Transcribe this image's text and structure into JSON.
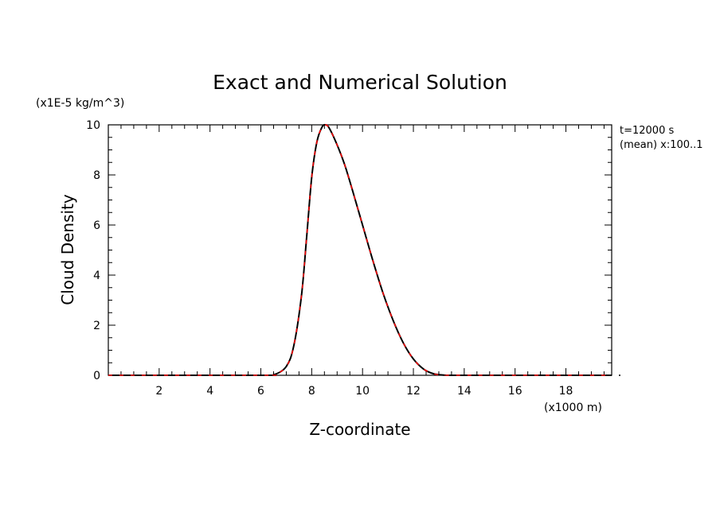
{
  "chart_data": {
    "type": "line",
    "title": "Exact and Numerical Solution",
    "xlabel": "Z-coordinate",
    "ylabel": "Cloud Density",
    "x_unit": "(x1000 m)",
    "y_unit": "(x1E-5 kg/m^3)",
    "annotations": [
      "t=12000 s",
      "(mean) x:100..1"
    ],
    "xlim": [
      0,
      19.8
    ],
    "ylim": [
      0,
      10
    ],
    "x_ticks": [
      2,
      4,
      6,
      8,
      10,
      12,
      14,
      16,
      18
    ],
    "y_ticks": [
      0,
      2,
      4,
      6,
      8,
      10
    ],
    "grid": false,
    "colors": {
      "exact": "#000000",
      "numerical": "#ff0000"
    },
    "x": [
      0,
      6.0,
      6.5,
      7.0,
      7.3,
      7.6,
      7.8,
      8.0,
      8.2,
      8.4,
      8.55,
      8.7,
      9.0,
      9.3,
      9.6,
      10.0,
      10.4,
      10.8,
      11.2,
      11.6,
      12.0,
      12.4,
      12.8,
      13.2,
      14.0,
      19.8
    ],
    "series": [
      {
        "values": [
          0,
          0,
          0.02,
          0.35,
          1.2,
          3.2,
          5.5,
          7.9,
          9.3,
          9.9,
          10.0,
          9.85,
          9.2,
          8.4,
          7.4,
          6.0,
          4.6,
          3.3,
          2.2,
          1.3,
          0.65,
          0.25,
          0.06,
          0.01,
          0,
          0
        ]
      },
      {
        "values": [
          0,
          0,
          0.02,
          0.35,
          1.2,
          3.2,
          5.5,
          7.9,
          9.3,
          9.9,
          10.0,
          9.85,
          9.2,
          8.4,
          7.4,
          6.0,
          4.6,
          3.3,
          2.2,
          1.3,
          0.65,
          0.25,
          0.06,
          0.01,
          0,
          0
        ]
      }
    ]
  }
}
